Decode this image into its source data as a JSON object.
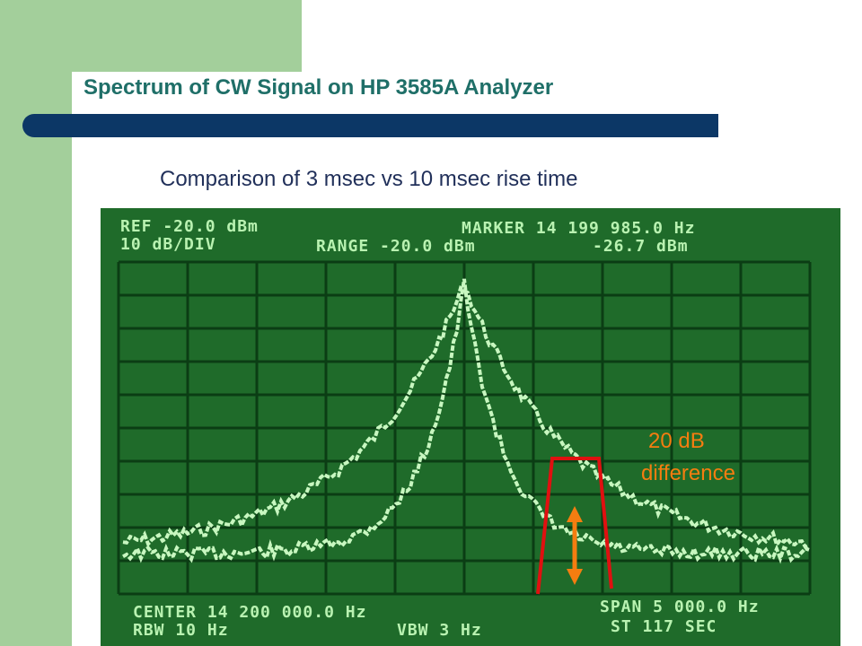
{
  "slide": {
    "title": "Spectrum of CW Signal on HP 3585A Analyzer",
    "subtitle": "Comparison of 3 msec vs 10 msec rise time"
  },
  "analyzer": {
    "ref": "REF -20.0 dBm",
    "scale": "10 dB/DIV",
    "range": "RANGE -20.0 dBm",
    "marker": "MARKER 14 199 985.0 Hz",
    "marker_level": "-26.7 dBm",
    "center": "CENTER 14 200 000.0 Hz",
    "rbw": "RBW 10 Hz",
    "vbw": "VBW 3 Hz",
    "span": "SPAN 5 000.0 Hz",
    "sweep": "ST 117 SEC"
  },
  "annotation": {
    "line1": "20 dB",
    "line2": "difference",
    "color": "#f57d10",
    "bracket_color": "#e01010"
  },
  "colors": {
    "band": "#a3cf9b",
    "title_bar": "#0c3766",
    "screen_bg": "#1f6b2a",
    "trace": "#c8f7c0"
  }
}
